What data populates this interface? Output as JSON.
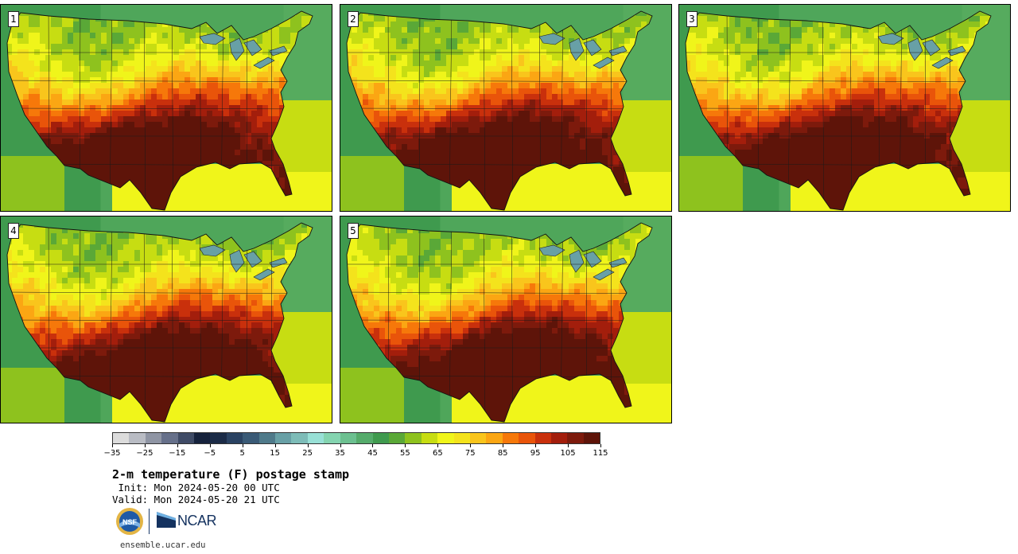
{
  "panels": [
    {
      "number": "1",
      "variant": 0
    },
    {
      "number": "2",
      "variant": 1
    },
    {
      "number": "3",
      "variant": 2
    },
    {
      "number": "4",
      "variant": 3
    },
    {
      "number": "5",
      "variant": 4
    }
  ],
  "colorbar": {
    "colors": [
      "#dcdcdc",
      "#b9bcc4",
      "#8f95a4",
      "#66708a",
      "#3f4b66",
      "#16223c",
      "#1b2b47",
      "#2a4262",
      "#3a5a76",
      "#4f7a8a",
      "#68a0a6",
      "#7dbcb8",
      "#98e0d6",
      "#84d4b0",
      "#6cc090",
      "#55ab6b",
      "#3f9a4e",
      "#5aa837",
      "#8ec21e",
      "#c7dd12",
      "#f0f51a",
      "#f4e31c",
      "#f9c51c",
      "#fba613",
      "#f6780a",
      "#e9540a",
      "#c9300c",
      "#a31e0c",
      "#7d1a0c",
      "#5e1409"
    ],
    "tick_labels": [
      "−35",
      "−25",
      "−15",
      "−5",
      "5",
      "15",
      "25",
      "35",
      "45",
      "55",
      "65",
      "75",
      "85",
      "95",
      "105",
      "115"
    ]
  },
  "title": "2-m temperature (F) postage stamp",
  "init": " Init: Mon 2024-05-20 00 UTC",
  "valid": "Valid: Mon 2024-05-20 21 UTC",
  "logos": {
    "nsf": "NSF",
    "ncar": "NCAR"
  },
  "url": "ensemble.ucar.edu"
}
